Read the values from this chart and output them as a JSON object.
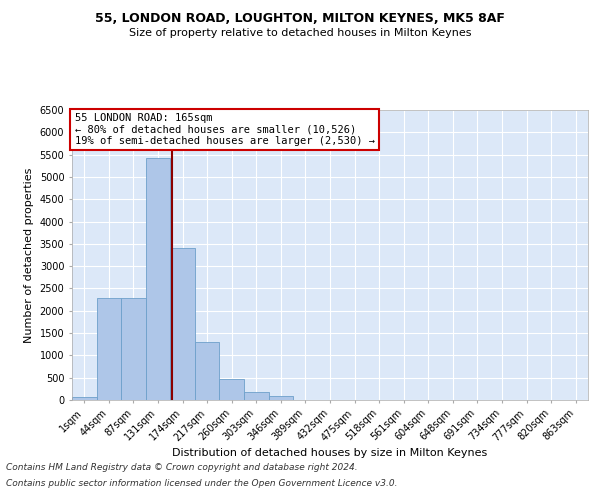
{
  "title": "55, LONDON ROAD, LOUGHTON, MILTON KEYNES, MK5 8AF",
  "subtitle": "Size of property relative to detached houses in Milton Keynes",
  "xlabel": "Distribution of detached houses by size in Milton Keynes",
  "ylabel": "Number of detached properties",
  "categories": [
    "1sqm",
    "44sqm",
    "87sqm",
    "131sqm",
    "174sqm",
    "217sqm",
    "260sqm",
    "303sqm",
    "346sqm",
    "389sqm",
    "432sqm",
    "475sqm",
    "518sqm",
    "561sqm",
    "604sqm",
    "648sqm",
    "691sqm",
    "734sqm",
    "777sqm",
    "820sqm",
    "863sqm"
  ],
  "bar_values": [
    75,
    2280,
    2280,
    5420,
    3400,
    1310,
    480,
    175,
    80,
    0,
    0,
    0,
    0,
    0,
    0,
    0,
    0,
    0,
    0,
    0,
    0
  ],
  "bar_color": "#aec6e8",
  "bar_edge_color": "#6da0cb",
  "vline_color": "#8b0000",
  "annotation_title": "55 LONDON ROAD: 165sqm",
  "annotation_line1": "← 80% of detached houses are smaller (10,526)",
  "annotation_line2": "19% of semi-detached houses are larger (2,530) →",
  "annotation_box_color": "#ffffff",
  "annotation_box_edge_color": "#cc0000",
  "ylim": [
    0,
    6500
  ],
  "yticks": [
    0,
    500,
    1000,
    1500,
    2000,
    2500,
    3000,
    3500,
    4000,
    4500,
    5000,
    5500,
    6000,
    6500
  ],
  "bg_color": "#dce8f8",
  "plot_bg_color": "#dce8f8",
  "fig_bg_color": "#ffffff",
  "footer_line1": "Contains HM Land Registry data © Crown copyright and database right 2024.",
  "footer_line2": "Contains public sector information licensed under the Open Government Licence v3.0.",
  "title_fontsize": 9,
  "subtitle_fontsize": 8,
  "xlabel_fontsize": 8,
  "ylabel_fontsize": 8,
  "tick_fontsize": 7,
  "footer_fontsize": 6.5,
  "annotation_fontsize": 7.5,
  "vline_position": 3.55
}
